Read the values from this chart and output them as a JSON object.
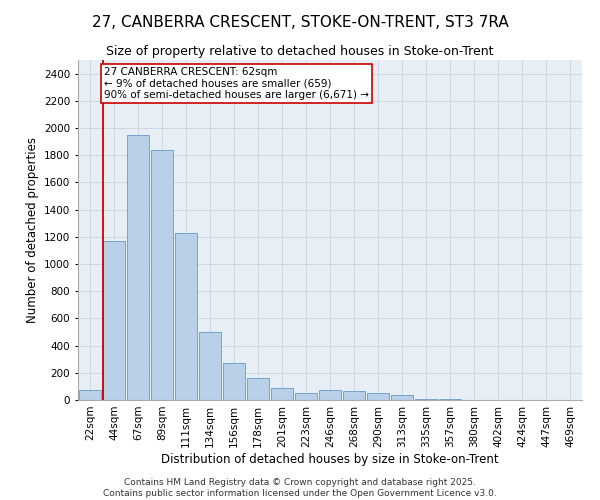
{
  "title1": "27, CANBERRA CRESCENT, STOKE-ON-TRENT, ST3 7RA",
  "title2": "Size of property relative to detached houses in Stoke-on-Trent",
  "xlabel": "Distribution of detached houses by size in Stoke-on-Trent",
  "ylabel": "Number of detached properties",
  "categories": [
    "22sqm",
    "44sqm",
    "67sqm",
    "89sqm",
    "111sqm",
    "134sqm",
    "156sqm",
    "178sqm",
    "201sqm",
    "223sqm",
    "246sqm",
    "268sqm",
    "290sqm",
    "313sqm",
    "335sqm",
    "357sqm",
    "380sqm",
    "402sqm",
    "424sqm",
    "447sqm",
    "469sqm"
  ],
  "values": [
    70,
    1170,
    1950,
    1840,
    1230,
    500,
    270,
    160,
    90,
    50,
    70,
    65,
    55,
    35,
    10,
    5,
    3,
    2,
    1,
    1,
    1
  ],
  "bar_color": "#b8d0e8",
  "bar_edge_color": "#6699cc",
  "grid_color": "#c8d4e0",
  "bg_color": "#e8eef5",
  "vline_color": "#cc0000",
  "annotation_text": "27 CANBERRA CRESCENT: 62sqm\n← 9% of detached houses are smaller (659)\n90% of semi-detached houses are larger (6,671) →",
  "annotation_box_color": "#ffffff",
  "annotation_box_edge": "#cc0000",
  "ylim": [
    0,
    2500
  ],
  "yticks": [
    0,
    200,
    400,
    600,
    800,
    1000,
    1200,
    1400,
    1600,
    1800,
    2000,
    2200,
    2400
  ],
  "footer1": "Contains HM Land Registry data © Crown copyright and database right 2025.",
  "footer2": "Contains public sector information licensed under the Open Government Licence v3.0.",
  "title_fontsize": 11,
  "subtitle_fontsize": 9,
  "axis_label_fontsize": 8.5,
  "tick_fontsize": 7.5,
  "annotation_fontsize": 7.5,
  "footer_fontsize": 6.5
}
